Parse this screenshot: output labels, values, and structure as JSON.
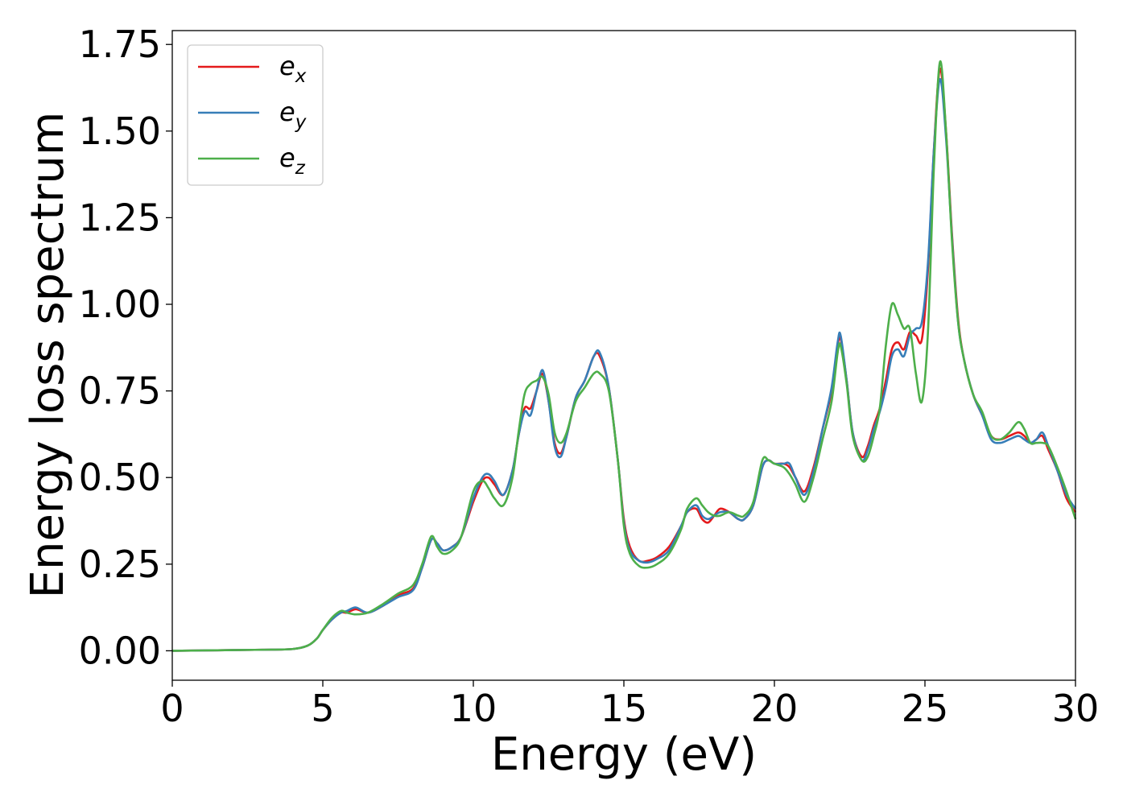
{
  "chart_data": {
    "type": "line",
    "xlabel": "Energy (eV)",
    "ylabel": "Energy loss spectrum",
    "xlim": [
      0,
      30
    ],
    "ylim": [
      -0.085,
      1.79
    ],
    "xticks": [
      0,
      5,
      10,
      15,
      20,
      25,
      30
    ],
    "yticks": [
      0.0,
      0.25,
      0.5,
      0.75,
      1.0,
      1.25,
      1.5,
      1.75
    ],
    "xtick_labels": [
      "0",
      "5",
      "10",
      "15",
      "20",
      "25",
      "30"
    ],
    "ytick_labels": [
      "0.00",
      "0.25",
      "0.50",
      "0.75",
      "1.00",
      "1.25",
      "1.50",
      "1.75"
    ],
    "grid": false,
    "legend_position": "top-left",
    "series": [
      {
        "name": "e",
        "subscript": "x",
        "color": "#e41a1c",
        "x": [
          0,
          1,
          2,
          3,
          4,
          4.5,
          4.8,
          5.0,
          5.3,
          5.6,
          5.8,
          6.1,
          6.5,
          7.0,
          7.5,
          8.0,
          8.3,
          8.6,
          8.8,
          9.0,
          9.3,
          9.6,
          10.0,
          10.3,
          10.5,
          10.7,
          11.0,
          11.3,
          11.5,
          11.7,
          11.9,
          12.1,
          12.3,
          12.5,
          12.7,
          12.9,
          13.1,
          13.4,
          13.7,
          14.0,
          14.2,
          14.5,
          14.8,
          15.0,
          15.2,
          15.5,
          15.8,
          16.1,
          16.5,
          16.9,
          17.1,
          17.4,
          17.6,
          17.8,
          18.0,
          18.2,
          18.5,
          18.8,
          19.0,
          19.3,
          19.6,
          19.8,
          20.0,
          20.3,
          20.5,
          20.7,
          21.0,
          21.3,
          21.6,
          21.9,
          22.1,
          22.2,
          22.4,
          22.6,
          22.9,
          23.1,
          23.3,
          23.5,
          23.7,
          23.9,
          24.1,
          24.3,
          24.5,
          24.7,
          24.9,
          25.1,
          25.3,
          25.5,
          25.7,
          25.9,
          26.1,
          26.3,
          26.6,
          26.9,
          27.2,
          27.5,
          27.8,
          28.1,
          28.3,
          28.5,
          28.7,
          28.9,
          29.1,
          29.4,
          29.7,
          30.0
        ],
        "y": [
          0.0,
          0.001,
          0.002,
          0.003,
          0.005,
          0.015,
          0.035,
          0.06,
          0.09,
          0.11,
          0.11,
          0.12,
          0.11,
          0.13,
          0.16,
          0.18,
          0.24,
          0.32,
          0.31,
          0.29,
          0.3,
          0.33,
          0.43,
          0.49,
          0.5,
          0.48,
          0.45,
          0.52,
          0.62,
          0.7,
          0.7,
          0.75,
          0.8,
          0.72,
          0.6,
          0.57,
          0.62,
          0.73,
          0.78,
          0.85,
          0.85,
          0.76,
          0.55,
          0.38,
          0.3,
          0.26,
          0.26,
          0.27,
          0.3,
          0.36,
          0.4,
          0.41,
          0.38,
          0.37,
          0.39,
          0.41,
          0.4,
          0.38,
          0.38,
          0.42,
          0.53,
          0.55,
          0.54,
          0.54,
          0.53,
          0.5,
          0.46,
          0.53,
          0.64,
          0.75,
          0.88,
          0.9,
          0.78,
          0.63,
          0.56,
          0.59,
          0.65,
          0.7,
          0.78,
          0.87,
          0.89,
          0.87,
          0.92,
          0.91,
          0.9,
          1.1,
          1.45,
          1.68,
          1.5,
          1.2,
          0.96,
          0.84,
          0.74,
          0.68,
          0.62,
          0.61,
          0.62,
          0.63,
          0.62,
          0.6,
          0.61,
          0.62,
          0.58,
          0.52,
          0.44,
          0.4
        ]
      },
      {
        "name": "e",
        "subscript": "y",
        "color": "#377eb8",
        "x": [
          0,
          1,
          2,
          3,
          4,
          4.5,
          4.8,
          5.0,
          5.3,
          5.6,
          5.8,
          6.1,
          6.5,
          7.0,
          7.5,
          8.0,
          8.3,
          8.6,
          8.8,
          9.0,
          9.3,
          9.6,
          10.0,
          10.3,
          10.5,
          10.7,
          11.0,
          11.3,
          11.5,
          11.7,
          11.9,
          12.1,
          12.3,
          12.5,
          12.7,
          12.9,
          13.1,
          13.4,
          13.7,
          14.0,
          14.2,
          14.5,
          14.8,
          15.0,
          15.2,
          15.5,
          15.8,
          16.1,
          16.5,
          16.9,
          17.1,
          17.4,
          17.6,
          17.8,
          18.0,
          18.2,
          18.5,
          18.8,
          19.0,
          19.3,
          19.6,
          19.8,
          20.0,
          20.3,
          20.5,
          20.7,
          21.0,
          21.3,
          21.6,
          21.9,
          22.1,
          22.2,
          22.4,
          22.6,
          22.9,
          23.1,
          23.3,
          23.5,
          23.7,
          23.9,
          24.1,
          24.3,
          24.5,
          24.7,
          24.9,
          25.1,
          25.3,
          25.5,
          25.7,
          25.9,
          26.1,
          26.3,
          26.6,
          26.9,
          27.2,
          27.5,
          27.8,
          28.1,
          28.3,
          28.5,
          28.7,
          28.9,
          29.1,
          29.4,
          29.7,
          30.0
        ],
        "y": [
          0.0,
          0.001,
          0.002,
          0.003,
          0.005,
          0.015,
          0.035,
          0.06,
          0.09,
          0.11,
          0.115,
          0.125,
          0.11,
          0.13,
          0.155,
          0.175,
          0.24,
          0.32,
          0.31,
          0.29,
          0.3,
          0.33,
          0.44,
          0.5,
          0.51,
          0.49,
          0.45,
          0.52,
          0.62,
          0.69,
          0.68,
          0.75,
          0.81,
          0.72,
          0.59,
          0.56,
          0.62,
          0.73,
          0.78,
          0.85,
          0.86,
          0.76,
          0.55,
          0.37,
          0.29,
          0.26,
          0.255,
          0.265,
          0.29,
          0.36,
          0.4,
          0.42,
          0.39,
          0.38,
          0.39,
          0.4,
          0.4,
          0.38,
          0.38,
          0.42,
          0.53,
          0.55,
          0.54,
          0.54,
          0.54,
          0.5,
          0.45,
          0.52,
          0.64,
          0.76,
          0.89,
          0.91,
          0.78,
          0.63,
          0.55,
          0.58,
          0.64,
          0.69,
          0.76,
          0.85,
          0.87,
          0.85,
          0.91,
          0.93,
          0.95,
          1.12,
          1.45,
          1.65,
          1.48,
          1.19,
          0.95,
          0.84,
          0.74,
          0.68,
          0.61,
          0.6,
          0.61,
          0.62,
          0.61,
          0.6,
          0.61,
          0.63,
          0.59,
          0.52,
          0.45,
          0.41
        ]
      },
      {
        "name": "e",
        "subscript": "z",
        "color": "#4daf4a",
        "x": [
          0,
          1,
          2,
          3,
          4,
          4.5,
          4.8,
          5.0,
          5.3,
          5.6,
          5.8,
          6.1,
          6.5,
          7.0,
          7.5,
          8.0,
          8.3,
          8.6,
          8.8,
          9.0,
          9.3,
          9.6,
          10.0,
          10.3,
          10.5,
          10.7,
          11.0,
          11.3,
          11.5,
          11.7,
          11.9,
          12.1,
          12.3,
          12.5,
          12.7,
          12.9,
          13.1,
          13.4,
          13.7,
          14.0,
          14.2,
          14.5,
          14.8,
          15.0,
          15.2,
          15.5,
          15.8,
          16.1,
          16.5,
          16.9,
          17.1,
          17.4,
          17.6,
          17.8,
          18.0,
          18.2,
          18.5,
          18.8,
          19.0,
          19.3,
          19.6,
          19.8,
          20.0,
          20.3,
          20.5,
          20.7,
          21.0,
          21.3,
          21.6,
          21.9,
          22.1,
          22.2,
          22.4,
          22.6,
          22.9,
          23.1,
          23.3,
          23.5,
          23.7,
          23.9,
          24.1,
          24.3,
          24.5,
          24.7,
          24.9,
          25.1,
          25.3,
          25.5,
          25.7,
          25.9,
          26.1,
          26.3,
          26.6,
          26.9,
          27.2,
          27.5,
          27.8,
          28.1,
          28.3,
          28.5,
          28.7,
          28.9,
          29.1,
          29.4,
          29.7,
          30.0
        ],
        "y": [
          0.0,
          0.001,
          0.002,
          0.003,
          0.005,
          0.015,
          0.035,
          0.06,
          0.095,
          0.115,
          0.11,
          0.105,
          0.11,
          0.135,
          0.165,
          0.19,
          0.25,
          0.33,
          0.3,
          0.28,
          0.29,
          0.33,
          0.46,
          0.49,
          0.47,
          0.44,
          0.42,
          0.5,
          0.63,
          0.74,
          0.77,
          0.78,
          0.79,
          0.74,
          0.63,
          0.6,
          0.63,
          0.72,
          0.76,
          0.8,
          0.8,
          0.75,
          0.55,
          0.36,
          0.28,
          0.245,
          0.24,
          0.25,
          0.28,
          0.35,
          0.41,
          0.44,
          0.42,
          0.4,
          0.39,
          0.39,
          0.4,
          0.39,
          0.39,
          0.43,
          0.55,
          0.55,
          0.54,
          0.53,
          0.51,
          0.48,
          0.43,
          0.5,
          0.61,
          0.72,
          0.86,
          0.88,
          0.77,
          0.62,
          0.55,
          0.56,
          0.62,
          0.7,
          0.88,
          1.0,
          0.97,
          0.93,
          0.93,
          0.8,
          0.72,
          0.92,
          1.4,
          1.7,
          1.5,
          1.18,
          0.95,
          0.84,
          0.74,
          0.69,
          0.62,
          0.61,
          0.63,
          0.66,
          0.64,
          0.6,
          0.6,
          0.6,
          0.59,
          0.53,
          0.46,
          0.38
        ]
      }
    ]
  }
}
